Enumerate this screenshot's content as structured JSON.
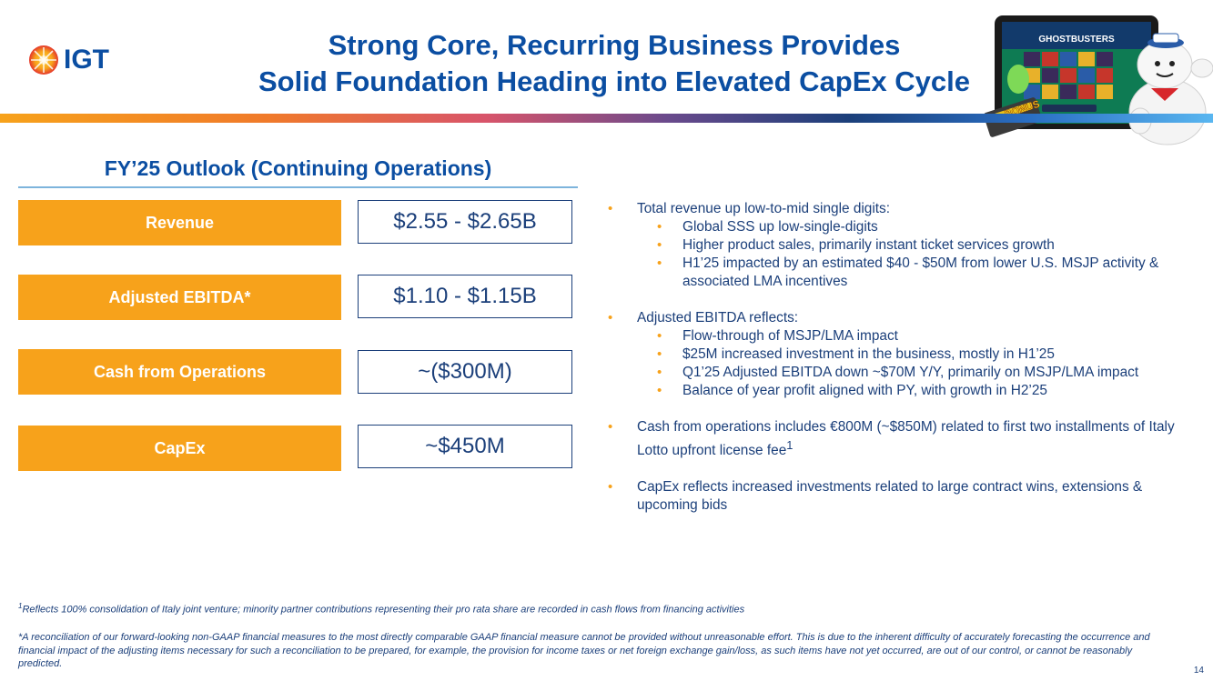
{
  "logo": {
    "text": "IGT"
  },
  "title": {
    "line1": "Strong Core, Recurring Business Provides",
    "line2": "Solid Foundation Heading into Elevated CapEx Cycle"
  },
  "hero": {
    "game_title": "GHOSTBUSTERS",
    "badge": "BONUS"
  },
  "outlook": {
    "title": "FY’25 Outlook (Continuing Operations)",
    "metrics": [
      {
        "label": "Revenue",
        "value": "$2.55 - $2.65B"
      },
      {
        "label": "Adjusted EBITDA*",
        "value": "$1.10 - $1.15B"
      },
      {
        "label": "Cash from Operations",
        "value": "~($300M)"
      },
      {
        "label": "CapEx",
        "value": "~$450M"
      }
    ]
  },
  "bullets": {
    "b1": "Total revenue up low-to-mid single digits:",
    "b1_subs": [
      "Global SSS up low-single-digits",
      "Higher product sales, primarily instant ticket services growth",
      "H1’25 impacted by an estimated $40 - $50M from lower U.S. MSJP activity & associated LMA incentives"
    ],
    "b2": "Adjusted EBITDA reflects:",
    "b2_subs": [
      "Flow-through of MSJP/LMA impact",
      "$25M increased investment in the business, mostly in H1’25",
      "Q1’25 Adjusted EBITDA down ~$70M Y/Y, primarily on MSJP/LMA impact",
      "Balance of year profit aligned with PY, with growth in H2’25"
    ],
    "b3": "Cash from operations includes €800M (~$850M) related to first two installments of Italy Lotto upfront license fee",
    "b3_sup": "1",
    "b4": "CapEx reflects increased investments related to large contract wins, extensions & upcoming bids"
  },
  "footnotes": {
    "fn1_sup": "1",
    "fn1": "Reflects 100% consolidation of Italy joint venture; minority partner contributions representing their pro rata share are recorded in cash flows from financing activities",
    "fn2": "*A reconciliation of our forward-looking non-GAAP financial measures to the most directly comparable GAAP financial measure cannot be provided without unreasonable effort. This is due to the inherent difficulty of accurately forecasting the occurrence and financial impact of the adjusting items necessary for such a reconciliation to be prepared, for example, the provision for income taxes or net foreign exchange gain/loss, as such items have not yet occurred, are out of our control, or cannot be reasonably predicted."
  },
  "page_number": "14",
  "colors": {
    "brand_blue": "#0b4ea2",
    "accent_orange": "#f7a21b",
    "rule_blue": "#7db4dc"
  }
}
